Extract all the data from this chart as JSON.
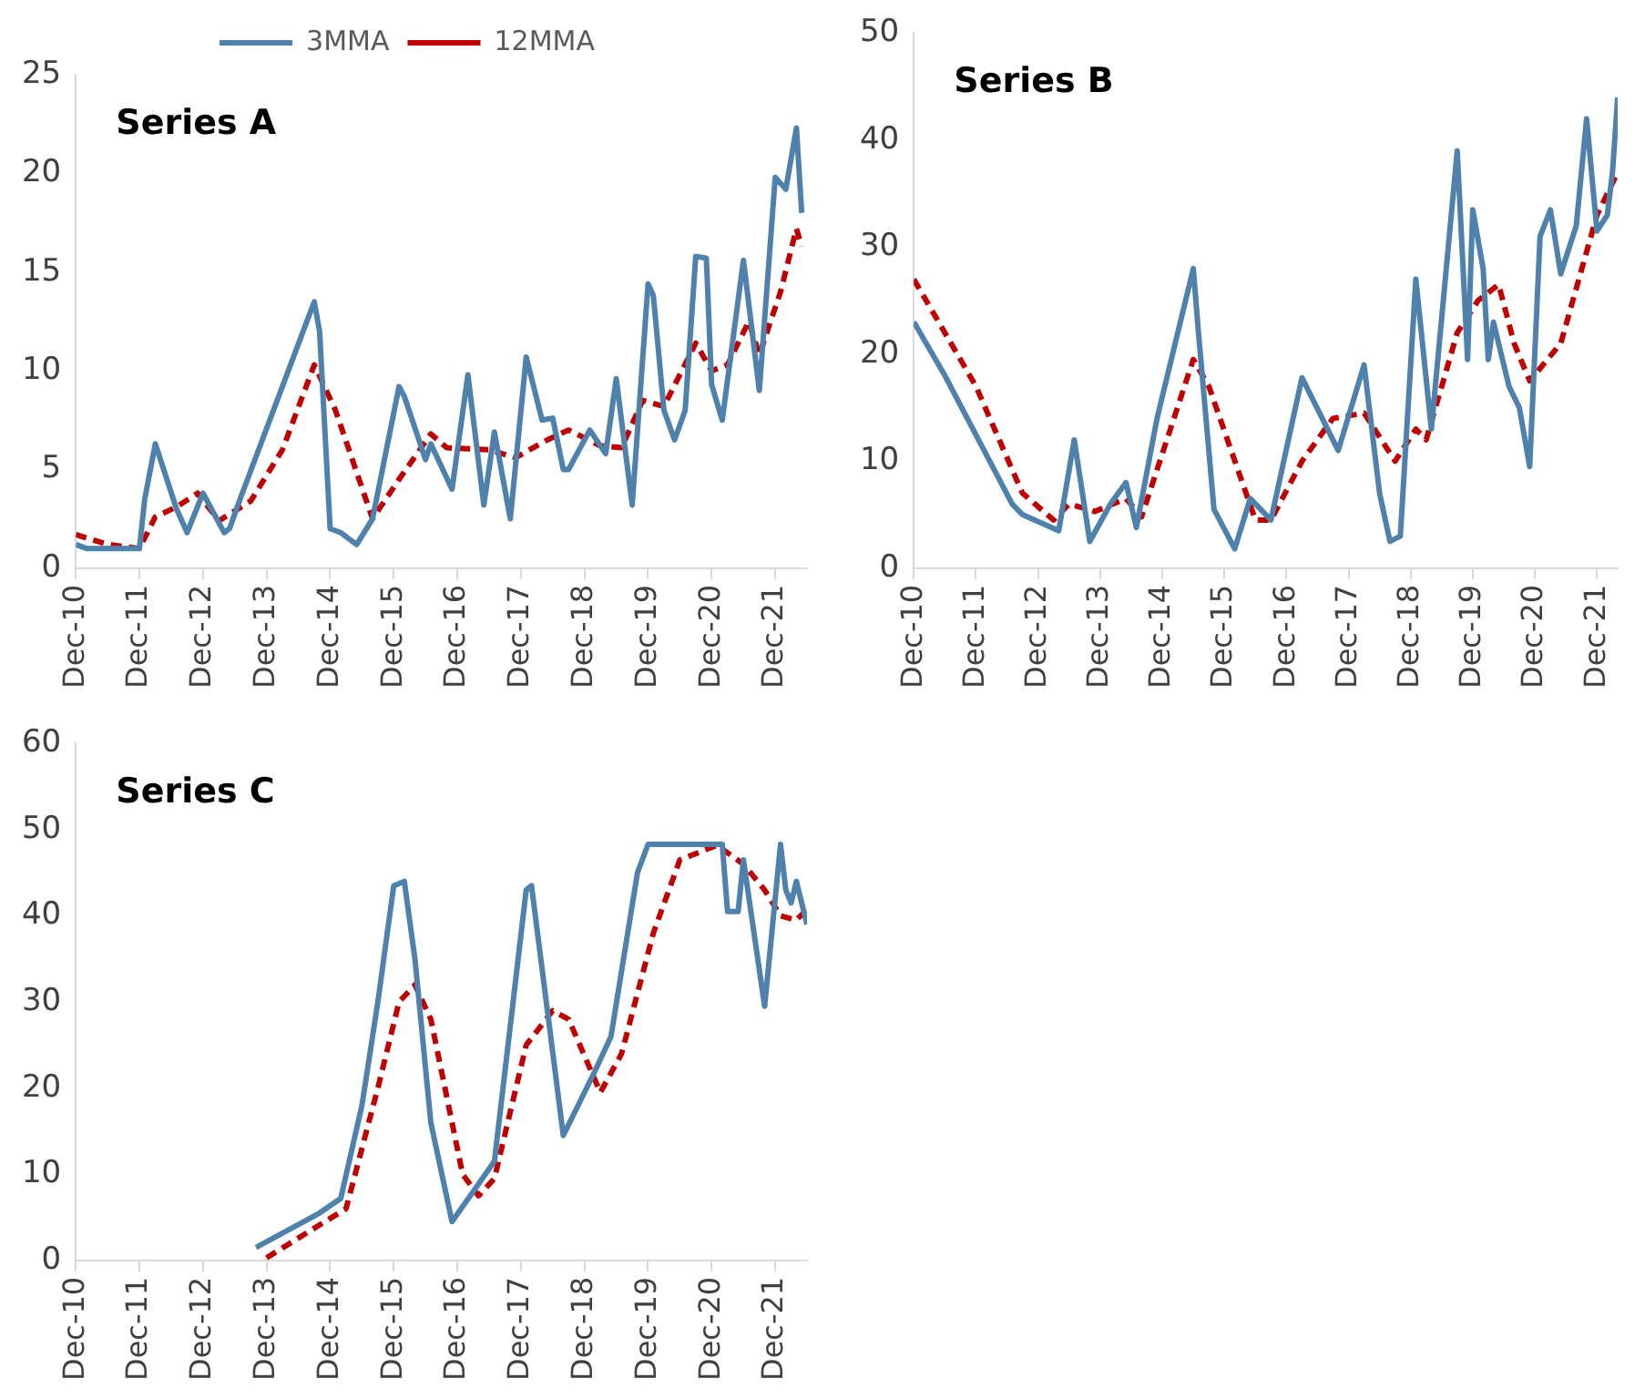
{
  "chart_data": [
    {
      "type": "line",
      "title": "Series A",
      "legend": "top",
      "marker": "none",
      "xlim": [
        "2010-12",
        "2022-06"
      ],
      "xticks": [
        {
          "value": "2010-12",
          "label": "Dec-10"
        },
        {
          "value": "2011-12",
          "label": "Dec-11"
        },
        {
          "value": "2012-12",
          "label": "Dec-12"
        },
        {
          "value": "2013-12",
          "label": "Dec-13"
        },
        {
          "value": "2014-12",
          "label": "Dec-14"
        },
        {
          "value": "2015-12",
          "label": "Dec-15"
        },
        {
          "value": "2016-12",
          "label": "Dec-16"
        },
        {
          "value": "2017-12",
          "label": "Dec-17"
        },
        {
          "value": "2018-12",
          "label": "Dec-18"
        },
        {
          "value": "2019-12",
          "label": "Dec-19"
        },
        {
          "value": "2020-12",
          "label": "Dec-20"
        },
        {
          "value": "2021-12",
          "label": "Dec-21"
        }
      ],
      "ylim": [
        0,
        25
      ],
      "yticks": [
        0,
        5,
        10,
        15,
        20,
        25
      ],
      "series": [
        {
          "name": "3MMA",
          "color": "#4f81ad",
          "line_style": "solid",
          "x": [
            "2010-12",
            "2011-02",
            "2011-12",
            "2012-01",
            "2012-03",
            "2012-07",
            "2012-09",
            "2012-12",
            "2013-04",
            "2013-05",
            "2013-07",
            "2014-09",
            "2014-10",
            "2014-12",
            "2015-02",
            "2015-05",
            "2015-08",
            "2016-01",
            "2016-02",
            "2016-06",
            "2016-07",
            "2016-11",
            "2017-02",
            "2017-05",
            "2017-07",
            "2017-10",
            "2018-01",
            "2018-04",
            "2018-06",
            "2018-08",
            "2018-09",
            "2019-01",
            "2019-04",
            "2019-06",
            "2019-09",
            "2019-12",
            "2020-01",
            "2020-03",
            "2020-05",
            "2020-07",
            "2020-09",
            "2020-11",
            "2020-12",
            "2021-02",
            "2021-06",
            "2021-09",
            "2021-12",
            "2022-02",
            "2022-04",
            "2022-05"
          ],
          "values": [
            1.2,
            1.0,
            1.0,
            3.5,
            6.3,
            3.0,
            1.8,
            3.8,
            1.8,
            2.0,
            3.5,
            13.5,
            12,
            2.0,
            1.8,
            1.2,
            2.5,
            9.2,
            8.7,
            5.5,
            6.3,
            4.0,
            9.8,
            3.2,
            6.9,
            2.5,
            10.7,
            7.5,
            7.6,
            5.0,
            5.0,
            7.0,
            5.8,
            9.6,
            3.2,
            14.4,
            13.8,
            8.0,
            6.5,
            8.0,
            15.8,
            15.7,
            9.3,
            7.5,
            15.6,
            9.0,
            19.8,
            19.2,
            22.3,
            18.0
          ]
        },
        {
          "name": "12MMA",
          "color": "#c00000",
          "line_style": "dashed",
          "x": [
            "2010-12",
            "2011-06",
            "2011-12",
            "2012-03",
            "2012-07",
            "2012-11",
            "2013-03",
            "2013-09",
            "2014-03",
            "2014-09",
            "2015-01",
            "2015-08",
            "2016-01",
            "2016-07",
            "2016-10",
            "2017-06",
            "2017-11",
            "2018-05",
            "2018-09",
            "2019-03",
            "2019-07",
            "2019-11",
            "2020-03",
            "2020-09",
            "2020-12",
            "2021-03",
            "2021-07",
            "2021-09",
            "2022-01",
            "2022-04",
            "2022-05"
          ],
          "values": [
            1.7,
            1.2,
            1.0,
            2.6,
            3.1,
            3.8,
            2.4,
            3.4,
            6.0,
            10.3,
            8.0,
            2.5,
            4.5,
            6.8,
            6.1,
            6.0,
            5.6,
            6.5,
            7.0,
            6.2,
            6.1,
            8.5,
            8.2,
            11.4,
            10.0,
            10.3,
            12.5,
            10.8,
            14,
            17.2,
            16.3
          ]
        }
      ]
    },
    {
      "type": "line",
      "title": "Series B",
      "marker": "none",
      "xlim": [
        "2010-12",
        "2022-04"
      ],
      "xticks": [
        {
          "value": "2010-12",
          "label": "Dec-10"
        },
        {
          "value": "2011-12",
          "label": "Dec-11"
        },
        {
          "value": "2012-12",
          "label": "Dec-12"
        },
        {
          "value": "2013-12",
          "label": "Dec-13"
        },
        {
          "value": "2014-12",
          "label": "Dec-14"
        },
        {
          "value": "2015-12",
          "label": "Dec-15"
        },
        {
          "value": "2016-12",
          "label": "Dec-16"
        },
        {
          "value": "2017-12",
          "label": "Dec-17"
        },
        {
          "value": "2018-12",
          "label": "Dec-18"
        },
        {
          "value": "2019-12",
          "label": "Dec-19"
        },
        {
          "value": "2020-12",
          "label": "Dec-20"
        },
        {
          "value": "2021-12",
          "label": "Dec-21"
        }
      ],
      "ylim": [
        0,
        50
      ],
      "yticks": [
        0,
        10,
        20,
        30,
        40,
        50
      ],
      "series": [
        {
          "color": "#4f81ad",
          "line_style": "solid",
          "x": [
            "2010-12",
            "2011-06",
            "2012-07",
            "2012-09",
            "2013-04",
            "2013-07",
            "2013-10",
            "2014-02",
            "2014-05",
            "2014-07",
            "2014-11",
            "2015-06",
            "2015-07",
            "2015-10",
            "2016-02",
            "2016-05",
            "2016-09",
            "2017-03",
            "2017-10",
            "2018-03",
            "2018-06",
            "2018-08",
            "2018-10",
            "2019-01",
            "2019-04",
            "2019-09",
            "2019-11",
            "2019-12",
            "2020-02",
            "2020-03",
            "2020-04",
            "2020-07",
            "2020-09",
            "2020-11",
            "2021-01",
            "2021-03",
            "2021-05",
            "2021-08",
            "2021-10",
            "2021-12",
            "2022-02",
            "2022-03",
            "2022-04"
          ],
          "values": [
            23,
            18,
            6,
            5,
            3.5,
            12,
            2.5,
            6,
            8,
            3.8,
            14,
            28,
            22,
            5.5,
            1.8,
            6.5,
            4.5,
            17.8,
            11,
            19,
            7,
            2.5,
            3,
            27,
            13,
            39,
            19.5,
            33.5,
            28,
            19.5,
            23,
            17,
            15,
            9.5,
            31,
            33.5,
            27.5,
            32,
            42,
            31.5,
            33,
            37,
            44
          ]
        },
        {
          "color": "#c00000",
          "line_style": "dashed",
          "x": [
            "2010-12",
            "2011-12",
            "2012-09",
            "2013-03",
            "2013-06",
            "2013-11",
            "2014-05",
            "2014-08",
            "2015-06",
            "2015-09",
            "2016-06",
            "2016-09",
            "2017-03",
            "2017-09",
            "2018-03",
            "2018-09",
            "2019-01",
            "2019-03",
            "2019-09",
            "2020-01",
            "2020-05",
            "2020-08",
            "2020-11",
            "2021-05",
            "2021-12",
            "2022-04"
          ],
          "values": [
            27,
            17,
            7,
            4.5,
            6,
            5.3,
            6.5,
            4.8,
            19.5,
            17,
            4.5,
            4.5,
            10,
            14,
            14.5,
            10,
            13,
            12,
            22,
            25,
            26.5,
            21,
            17.5,
            21,
            33,
            37
          ]
        }
      ]
    },
    {
      "type": "line",
      "title": "Series C",
      "marker": "none",
      "xlim": [
        "2010-12",
        "2022-06"
      ],
      "xticks": [
        {
          "value": "2010-12",
          "label": "Dec-10"
        },
        {
          "value": "2011-12",
          "label": "Dec-11"
        },
        {
          "value": "2012-12",
          "label": "Dec-12"
        },
        {
          "value": "2013-12",
          "label": "Dec-13"
        },
        {
          "value": "2014-12",
          "label": "Dec-14"
        },
        {
          "value": "2015-12",
          "label": "Dec-15"
        },
        {
          "value": "2016-12",
          "label": "Dec-16"
        },
        {
          "value": "2017-12",
          "label": "Dec-17"
        },
        {
          "value": "2018-12",
          "label": "Dec-18"
        },
        {
          "value": "2019-12",
          "label": "Dec-19"
        },
        {
          "value": "2020-12",
          "label": "Dec-20"
        },
        {
          "value": "2021-12",
          "label": "Dec-21"
        }
      ],
      "ylim": [
        0,
        60
      ],
      "yticks": [
        0,
        10,
        20,
        30,
        40,
        50,
        60
      ],
      "series": [
        {
          "color": "#4f81ad",
          "line_style": "solid",
          "x": [
            "2013-10",
            "2014-10",
            "2015-02",
            "2015-06",
            "2015-09",
            "2015-12",
            "2016-02",
            "2016-04",
            "2016-07",
            "2016-11",
            "2017-03",
            "2017-07",
            "2018-01",
            "2018-02",
            "2018-08",
            "2019-02",
            "2019-05",
            "2019-10",
            "2019-12",
            "2021-02",
            "2021-03",
            "2021-05",
            "2021-06",
            "2021-10",
            "2022-01",
            "2022-02",
            "2022-03",
            "2022-04",
            "2022-06"
          ],
          "values": [
            1.5,
            5.5,
            7.2,
            18,
            30,
            43.5,
            44,
            35,
            16,
            4.5,
            8,
            11.5,
            43,
            43.5,
            14.5,
            22,
            26,
            45,
            48.3,
            48.3,
            40.5,
            40.5,
            46.5,
            29.5,
            48.3,
            43,
            41.5,
            44,
            39
          ]
        },
        {
          "color": "#c00000",
          "line_style": "dashed",
          "x": [
            "2013-12",
            "2014-11",
            "2015-03",
            "2015-09",
            "2016-01",
            "2016-04",
            "2016-07",
            "2017-01",
            "2017-04",
            "2017-07",
            "2018-01",
            "2018-06",
            "2018-09",
            "2019-03",
            "2019-07",
            "2020-01",
            "2020-06",
            "2021-01",
            "2021-06",
            "2021-10",
            "2022-01",
            "2022-04",
            "2022-06"
          ],
          "values": [
            0.3,
            4.5,
            6,
            20,
            30,
            32,
            28,
            10,
            7.5,
            9.5,
            25,
            29,
            28,
            19.5,
            24,
            38,
            46.5,
            48.2,
            46,
            43,
            40,
            39.5,
            40.8
          ]
        }
      ]
    }
  ]
}
